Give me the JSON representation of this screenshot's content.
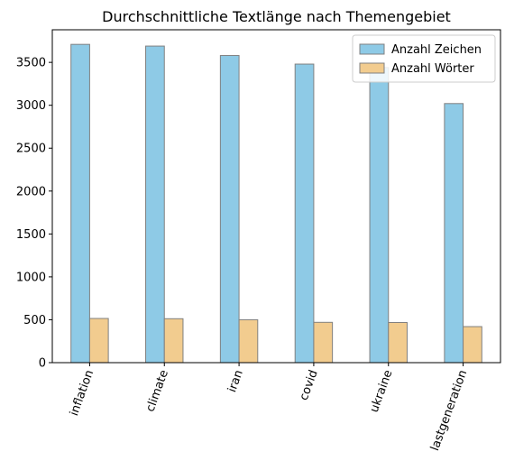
{
  "chart_data": {
    "type": "bar",
    "title": "Durchschnittliche Textlänge nach Themengebiet",
    "xlabel": "",
    "ylabel": "",
    "categories": [
      "inflation",
      "climate",
      "iran",
      "covid",
      "ukraine",
      "lastgeneration"
    ],
    "series": [
      {
        "name": "Anzahl Zeichen",
        "values": [
          3710,
          3690,
          3580,
          3480,
          3440,
          3020
        ],
        "color": "#8ecae6"
      },
      {
        "name": "Anzahl Wörter",
        "values": [
          515,
          512,
          500,
          470,
          468,
          420
        ],
        "color": "#f2cc8f"
      }
    ],
    "ylim": [
      0,
      3880
    ],
    "yticks": [
      0,
      500,
      1000,
      1500,
      2000,
      2500,
      3000,
      3500
    ],
    "grid": false,
    "legend_position": "top-right",
    "bar_edge_color": "#808080",
    "xtick_rotation_deg": 70
  }
}
